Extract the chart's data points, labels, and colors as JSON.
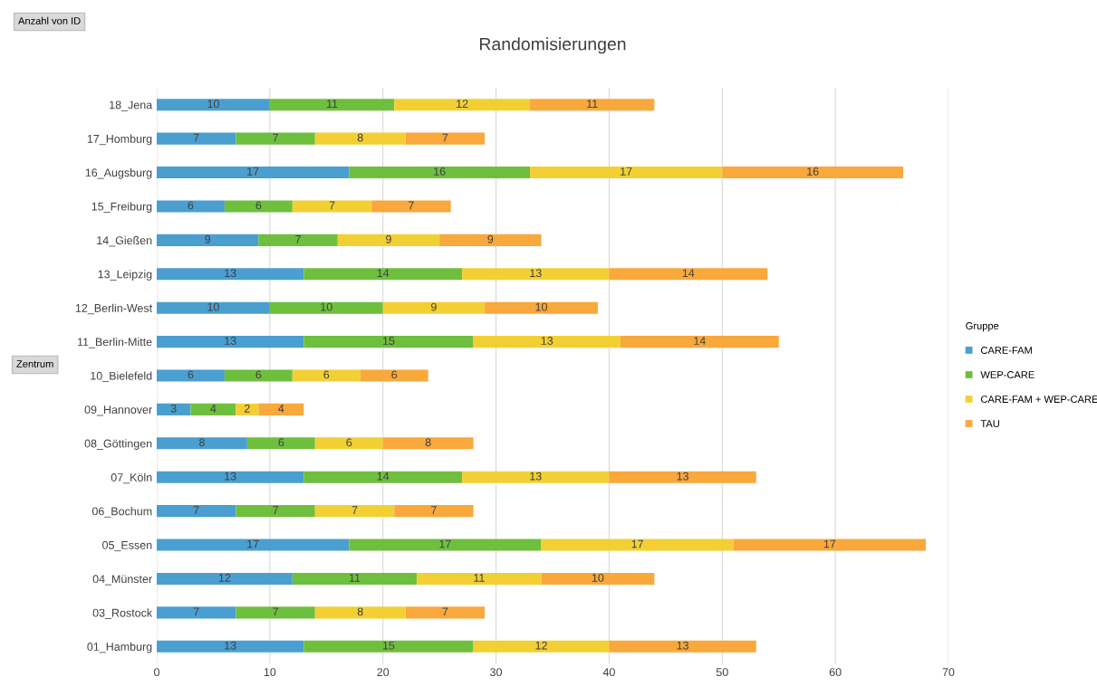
{
  "chart_data": {
    "type": "bar",
    "orientation": "horizontal",
    "stacked": true,
    "title": "Randomisierungen",
    "ylabel": "Zentrum",
    "legend_title": "Gruppe",
    "annotations": [
      "Anzahl von ID"
    ],
    "categories": [
      "18_Jena",
      "17_Homburg",
      "16_Augsburg",
      "15_Freiburg",
      "14_Gießen",
      "13_Leipzig",
      "12_Berlin-West",
      "11_Berlin-Mitte",
      "10_Bielefeld",
      "09_Hannover",
      "08_Göttingen",
      "07_Köln",
      "06_Bochum",
      "05_Essen",
      "04_Münster",
      "03_Rostock",
      "01_Hamburg"
    ],
    "series": [
      {
        "name": "CARE-FAM",
        "color": "#4a9fd0",
        "values": [
          10,
          7,
          17,
          6,
          9,
          13,
          10,
          13,
          6,
          3,
          8,
          13,
          7,
          17,
          12,
          7,
          13
        ]
      },
      {
        "name": "WEP-CARE",
        "color": "#6fbf3f",
        "values": [
          11,
          7,
          16,
          6,
          7,
          14,
          10,
          15,
          6,
          4,
          6,
          14,
          7,
          17,
          11,
          7,
          15
        ]
      },
      {
        "name": "CARE-FAM + WEP-CARE",
        "color": "#f2d033",
        "values": [
          12,
          8,
          17,
          7,
          9,
          13,
          9,
          13,
          6,
          2,
          6,
          13,
          7,
          17,
          11,
          8,
          12
        ]
      },
      {
        "name": "TAU",
        "color": "#f9a83b",
        "values": [
          11,
          7,
          16,
          7,
          9,
          14,
          10,
          14,
          6,
          4,
          8,
          13,
          7,
          17,
          10,
          7,
          13
        ]
      }
    ],
    "xlim": [
      0,
      70
    ],
    "xticks": [
      0,
      10,
      20,
      30,
      40,
      50,
      60,
      70
    ],
    "grid": "x",
    "legend": "right",
    "data_labels": true
  }
}
